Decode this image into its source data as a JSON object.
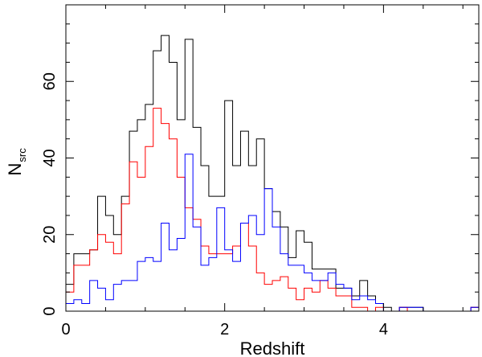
{
  "chart_data": {
    "type": "histogram-step",
    "title": "",
    "xlabel": "Redshift",
    "ylabel_main": "N",
    "ylabel_sub": "src",
    "xlim": [
      0,
      5.2
    ],
    "ylim": [
      0,
      80
    ],
    "bin_width": 0.1,
    "x_ticks": [
      0,
      2,
      4
    ],
    "x_tick_labels": [
      "0",
      "2",
      "4"
    ],
    "y_ticks": [
      0,
      20,
      40,
      60
    ],
    "y_tick_labels": [
      "0",
      "20",
      "40",
      "60"
    ],
    "series": [
      {
        "name": "total",
        "color": "#000000",
        "values": [
          7,
          15,
          15,
          16,
          30,
          25,
          20,
          30,
          47,
          50,
          54,
          68,
          72,
          65,
          50,
          71,
          48,
          38,
          30,
          30,
          55,
          38,
          47,
          38,
          45,
          32,
          26,
          22,
          14,
          21,
          18,
          11,
          11,
          11,
          6,
          6,
          4,
          8,
          4,
          2,
          1,
          0,
          1,
          1,
          1,
          0,
          0,
          0,
          0,
          0,
          0,
          1
        ]
      },
      {
        "name": "red",
        "color": "#ff0000",
        "values": [
          5,
          12,
          12,
          16,
          20,
          18,
          15,
          28,
          39,
          35,
          43,
          53,
          49,
          45,
          35,
          27,
          24,
          17,
          15,
          15,
          15,
          17,
          23,
          17,
          10,
          7,
          8,
          9,
          6,
          3,
          6,
          5,
          8,
          6,
          4,
          4,
          1,
          1,
          0,
          1,
          0,
          0,
          1,
          0,
          0,
          0,
          0,
          0,
          0,
          0,
          0,
          1
        ]
      },
      {
        "name": "blue",
        "color": "#0000ff",
        "values": [
          2,
          3,
          2,
          8,
          6,
          3,
          7,
          8,
          8,
          13,
          14,
          13,
          23,
          16,
          19,
          41,
          22,
          12,
          14,
          27,
          16,
          13,
          23,
          25,
          20,
          32,
          22,
          15,
          12,
          12,
          10,
          8,
          8,
          10,
          7,
          6,
          3,
          4,
          3,
          2,
          0,
          0,
          1,
          1,
          1,
          0,
          0,
          0,
          0,
          0,
          0,
          1
        ]
      }
    ]
  }
}
